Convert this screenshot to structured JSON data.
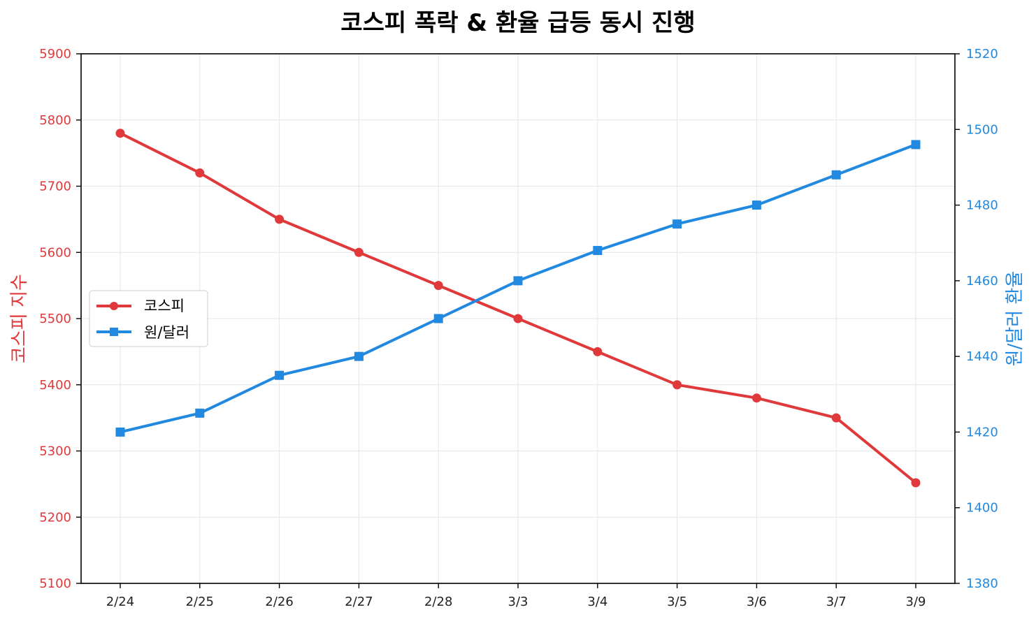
{
  "chart_data": {
    "type": "line",
    "title": "코스피 폭락 & 환율 급등 동시 진행",
    "categories": [
      "2/24",
      "2/25",
      "2/26",
      "2/27",
      "2/28",
      "3/3",
      "3/4",
      "3/5",
      "3/6",
      "3/7",
      "3/9"
    ],
    "ylabel_left": "코스피 지수",
    "ylabel_right": "원/달러 환율",
    "ylim_left": [
      5100,
      5900
    ],
    "ylim_right": [
      1380,
      1520
    ],
    "yticks_left": [
      "5100",
      "5200",
      "5300",
      "5400",
      "5500",
      "5600",
      "5700",
      "5800",
      "5900"
    ],
    "yticks_right": [
      "1380",
      "1400",
      "1420",
      "1440",
      "1460",
      "1480",
      "1500",
      "1520"
    ],
    "grid": true,
    "legend_position": "center-left",
    "series": [
      {
        "name": "코스피",
        "axis": "left",
        "color": "#e0393b",
        "marker": "circle",
        "values": [
          5780,
          5720,
          5650,
          5600,
          5550,
          5500,
          5450,
          5400,
          5380,
          5350,
          5252
        ]
      },
      {
        "name": "원/달러",
        "axis": "right",
        "color": "#2189e0",
        "marker": "square",
        "values": [
          1420,
          1425,
          1435,
          1440,
          1450,
          1460,
          1468,
          1475,
          1480,
          1488,
          1496
        ]
      }
    ]
  }
}
